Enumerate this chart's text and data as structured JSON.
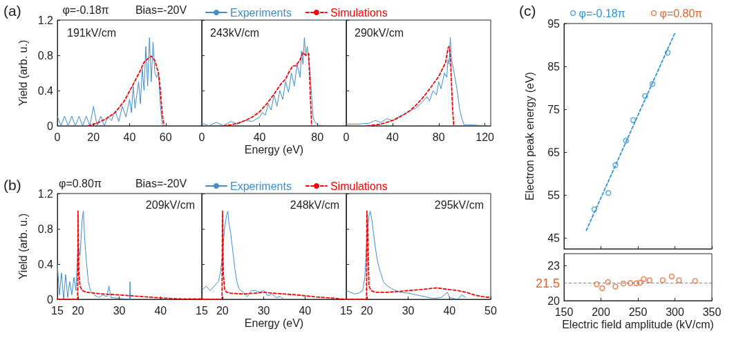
{
  "chart_data": [
    {
      "type": "line",
      "title": "(a)",
      "ylabel": "Yield (arb. u.)",
      "annotations": [
        "φ=-0.18π",
        "Bias=-20V",
        "191kV/cm"
      ],
      "xlim": [
        0,
        80
      ],
      "xticks": [
        0,
        20,
        40,
        60
      ],
      "ylim": [
        0,
        1.2
      ],
      "yticks": [
        0,
        0.4,
        0.8,
        1.2
      ],
      "legend": "top",
      "marker": "none",
      "series": [
        {
          "name": "Experiments",
          "color": "#3b8ed0",
          "line_style": "solid",
          "x": [
            0,
            2,
            4,
            6,
            8,
            10,
            12,
            14,
            16,
            18,
            20,
            22,
            24,
            26,
            28,
            30,
            32,
            34,
            36,
            38,
            40,
            41,
            42,
            43,
            44,
            45,
            46,
            47,
            48,
            49,
            50,
            51,
            52,
            53,
            54,
            55,
            56,
            57,
            58,
            59
          ],
          "values": [
            0.11,
            0,
            0.11,
            0,
            0.11,
            0,
            0.11,
            0,
            0.11,
            0,
            0.22,
            0,
            0.11,
            0,
            0.11,
            0.06,
            0.17,
            0.05,
            0.22,
            0.1,
            0.3,
            0.15,
            0.45,
            0.2,
            0.35,
            0.5,
            0.25,
            0.65,
            0.4,
            0.9,
            0.45,
            1.0,
            0.5,
            0.95,
            0.6,
            0.55,
            0.6,
            0.25,
            0.02,
            0
          ]
        },
        {
          "name": "Simulations",
          "color": "#ff0000",
          "line_style": "dashed",
          "x": [
            17,
            22,
            27,
            32,
            37,
            42,
            46,
            48,
            50,
            52,
            54,
            56,
            57,
            58,
            59
          ],
          "values": [
            0,
            0.03,
            0.08,
            0.15,
            0.28,
            0.47,
            0.63,
            0.72,
            0.76,
            0.79,
            0.74,
            0.6,
            0.42,
            0.15,
            0
          ]
        }
      ]
    },
    {
      "type": "line",
      "xlabel": "Energy (eV)",
      "annotations": [
        "243kV/cm"
      ],
      "xlim": [
        0,
        100
      ],
      "xticks": [
        0,
        40,
        80
      ],
      "ylim": [
        0,
        1.2
      ],
      "yticks": [
        0,
        0.4,
        0.8,
        1.2
      ],
      "tick_labels": "x",
      "marker": "none",
      "series": [
        {
          "color": "#3b8ed0",
          "line_style": "solid",
          "x": [
            0,
            5,
            10,
            15,
            20,
            25,
            30,
            35,
            40,
            42,
            44,
            46,
            48,
            50,
            52,
            54,
            56,
            58,
            60,
            62,
            64,
            66,
            68,
            69,
            70,
            71,
            72,
            73,
            74,
            75,
            76,
            77,
            78,
            80,
            85
          ],
          "values": [
            0.03,
            0,
            0.04,
            0,
            0.05,
            0.02,
            0.06,
            0.05,
            0.1,
            0.15,
            0.12,
            0.25,
            0.18,
            0.35,
            0.22,
            0.4,
            0.3,
            0.5,
            0.38,
            0.6,
            0.45,
            0.7,
            0.55,
            0.85,
            0.7,
            1.0,
            0.8,
            0.9,
            0.75,
            0.6,
            0.35,
            0.1,
            0.05,
            0.01,
            0
          ]
        },
        {
          "color": "#ff0000",
          "line_style": "dashed",
          "x": [
            15,
            20,
            25,
            30,
            35,
            40,
            45,
            50,
            55,
            58,
            60,
            63,
            65,
            68,
            70,
            72,
            74,
            75,
            76
          ],
          "values": [
            0,
            0.01,
            0.03,
            0.06,
            0.1,
            0.16,
            0.25,
            0.36,
            0.48,
            0.53,
            0.6,
            0.68,
            0.68,
            0.75,
            0.83,
            0.8,
            0.82,
            0.4,
            0
          ]
        }
      ]
    },
    {
      "type": "line",
      "annotations": [
        "290kV/cm"
      ],
      "xlim": [
        0,
        125
      ],
      "xticks": [
        0,
        40,
        80,
        120
      ],
      "ylim": [
        0,
        1.2
      ],
      "yticks": [
        0,
        0.4,
        0.8,
        1.2
      ],
      "tick_labels": "x",
      "marker": "none",
      "series": [
        {
          "color": "#3b8ed0",
          "line_style": "solid",
          "x": [
            0,
            10,
            20,
            25,
            30,
            35,
            40,
            45,
            50,
            55,
            60,
            65,
            70,
            72,
            75,
            78,
            80,
            82,
            85,
            87,
            88,
            89,
            90,
            91,
            92,
            94,
            96,
            98,
            100,
            102,
            110,
            120
          ],
          "values": [
            0.02,
            0.02,
            0.03,
            0.06,
            0.04,
            0.08,
            0.06,
            0.1,
            0.13,
            0.17,
            0.2,
            0.26,
            0.33,
            0.28,
            0.4,
            0.35,
            0.5,
            0.42,
            0.6,
            0.55,
            0.75,
            0.7,
            1.0,
            0.75,
            0.7,
            0.55,
            0.4,
            0.2,
            0.08,
            0.01,
            0.01,
            0
          ]
        },
        {
          "color": "#ff0000",
          "line_style": "dashed",
          "x": [
            18,
            25,
            30,
            35,
            40,
            45,
            50,
            55,
            60,
            65,
            70,
            75,
            80,
            83,
            86,
            88,
            89,
            90,
            91,
            92,
            93
          ],
          "values": [
            0,
            0.01,
            0.02,
            0.04,
            0.06,
            0.09,
            0.13,
            0.17,
            0.23,
            0.3,
            0.38,
            0.47,
            0.56,
            0.64,
            0.72,
            0.88,
            0.9,
            0.8,
            0.5,
            0.2,
            0
          ]
        }
      ]
    },
    {
      "type": "line",
      "title": "(b)",
      "ylabel": "Yield (arb. u.)",
      "annotations": [
        "φ=0.80π",
        "Bias=-20V",
        "209kV/cm"
      ],
      "xlim": [
        15,
        50
      ],
      "xticks": [
        15,
        20,
        30,
        40
      ],
      "ylim": [
        0,
        1.2
      ],
      "yticks": [
        0,
        0.4,
        0.8,
        1.2
      ],
      "legend": "top",
      "marker": "none",
      "series": [
        {
          "name": "Experiments",
          "color": "#3b8ed0",
          "line_style": "solid",
          "x": [
            15,
            15.5,
            16,
            16.5,
            17,
            17.5,
            18,
            18.5,
            19,
            19.5,
            20,
            20.5,
            21,
            21.3,
            21.6,
            22,
            22.5,
            23,
            24,
            25,
            26,
            27,
            27.5,
            28,
            30,
            32.5,
            32.6,
            32.7
          ],
          "values": [
            0.4,
            0.05,
            0.3,
            0,
            0.28,
            0.02,
            0.2,
            0.05,
            0.25,
            0.1,
            0.6,
            0.5,
            0.9,
            1.0,
            0.7,
            0.45,
            0.2,
            0.1,
            0.05,
            0.02,
            0.05,
            0.03,
            0.15,
            0.02,
            0.01,
            0,
            0.2,
            0
          ]
        },
        {
          "name": "Simulations",
          "color": "#ff0000",
          "line_style": "dashed",
          "x": [
            15,
            19.9,
            20,
            20.2,
            20.5,
            21,
            22,
            24,
            26,
            28,
            30,
            33,
            36,
            40,
            45,
            50
          ],
          "values": [
            0,
            0,
            1.0,
            0.3,
            0.15,
            0.1,
            0.08,
            0.07,
            0.06,
            0.055,
            0.05,
            0.04,
            0.03,
            0.015,
            0.005,
            0.005
          ]
        }
      ]
    },
    {
      "type": "line",
      "xlabel": "Energy (eV)",
      "annotations": [
        "248kV/cm"
      ],
      "xlim": [
        15,
        50
      ],
      "xticks": [
        15,
        20,
        30,
        40
      ],
      "ylim": [
        0,
        1.2
      ],
      "yticks": [
        0,
        0.4,
        0.8,
        1.2
      ],
      "tick_labels": "x",
      "marker": "none",
      "series": [
        {
          "color": "#3b8ed0",
          "line_style": "solid",
          "x": [
            15,
            16,
            17,
            18,
            19,
            19.5,
            20,
            20.5,
            21,
            21.3,
            21.6,
            22,
            22.5,
            23,
            23.5,
            24,
            25,
            26,
            27,
            28,
            29,
            30,
            31,
            32,
            33,
            34,
            35
          ],
          "values": [
            0.1,
            0.15,
            0.1,
            0.15,
            0.2,
            0.3,
            0.5,
            0.8,
            0.95,
            1.0,
            0.85,
            0.75,
            0.55,
            0.35,
            0.2,
            0.12,
            0.08,
            0.03,
            0.1,
            0.1,
            0.08,
            0.1,
            0.04,
            0.06,
            0.02,
            0.03,
            0
          ]
        },
        {
          "color": "#ff0000",
          "line_style": "dashed",
          "x": [
            15,
            19.9,
            20,
            20.2,
            20.5,
            21,
            22,
            25,
            28,
            30,
            32,
            35,
            38,
            40,
            42,
            45,
            50
          ],
          "values": [
            0,
            0,
            1.0,
            0.3,
            0.12,
            0.08,
            0.07,
            0.06,
            0.07,
            0.08,
            0.07,
            0.06,
            0.05,
            0.04,
            0.03,
            0.02,
            0
          ]
        }
      ]
    },
    {
      "type": "line",
      "annotations": [
        "295kV/cm"
      ],
      "xlim": [
        15,
        50
      ],
      "xticks": [
        15,
        20,
        30,
        40,
        50
      ],
      "ylim": [
        0,
        1.2
      ],
      "yticks": [
        0,
        0.4,
        0.8,
        1.2
      ],
      "tick_labels": "x",
      "marker": "none",
      "series": [
        {
          "color": "#3b8ed0",
          "line_style": "solid",
          "x": [
            15,
            16,
            17,
            18,
            19,
            19.5,
            20,
            20.5,
            20.8,
            21.2,
            21.6,
            22,
            22.5,
            23,
            24,
            25,
            26,
            27,
            28,
            30,
            32,
            34,
            35,
            36,
            38,
            39.5,
            40,
            42,
            43,
            44
          ],
          "values": [
            0.1,
            0.08,
            0.06,
            0.07,
            0.1,
            0.25,
            0.7,
            0.95,
            1.0,
            0.9,
            0.75,
            0.6,
            0.45,
            0.35,
            0.2,
            0.15,
            0.12,
            0.1,
            0.08,
            0.07,
            0.05,
            0.03,
            0.02,
            0.01,
            0.02,
            0.08,
            0.02,
            0,
            0.05,
            0.02
          ]
        },
        {
          "color": "#ff0000",
          "line_style": "dashed",
          "x": [
            15,
            19.9,
            20,
            20.2,
            20.5,
            21,
            22,
            25,
            28,
            30,
            33,
            35,
            37,
            40,
            42,
            44,
            46,
            48,
            50
          ],
          "values": [
            0,
            0,
            1.0,
            0.75,
            0.15,
            0.1,
            0.08,
            0.08,
            0.09,
            0.1,
            0.11,
            0.12,
            0.13,
            0.11,
            0.1,
            0.08,
            0.05,
            0.03,
            0.02
          ]
        }
      ]
    },
    {
      "type": "scatter",
      "title": "(c)",
      "ylabel": "Electron peak energy (eV)",
      "xlim": [
        150,
        350
      ],
      "xticks": [
        150,
        200,
        250,
        300,
        350
      ],
      "ylim": [
        42.5,
        95
      ],
      "yticks": [
        45,
        55,
        65,
        75,
        85,
        95
      ],
      "tick_labels": "y",
      "legend": "top",
      "marker": "circle",
      "series": [
        {
          "name": "φ=-0.18π",
          "color": "#2e95d8",
          "x": [
            191,
            210,
            219.5,
            233.8,
            243.5,
            259.7,
            269.6,
            290.2
          ],
          "values": [
            51.7,
            55.5,
            62.0,
            67.7,
            72.5,
            78.1,
            80.9,
            88.2
          ]
        },
        {
          "type": "line",
          "color": "#2e95d8",
          "line_style": "dashed",
          "marker": "none",
          "x": [
            180.2,
            300.5
          ],
          "values": [
            46.8,
            93.0
          ]
        }
      ]
    },
    {
      "type": "scatter",
      "xlabel": "Electric field amplitude (kV/cm)",
      "xlim": [
        150,
        350
      ],
      "xticks": [
        150,
        200,
        250,
        300,
        350
      ],
      "ylim": [
        20,
        24
      ],
      "yticks": [
        20,
        23
      ],
      "legend": "top",
      "marker": "circle",
      "ref_lines": [
        {
          "axis": "y",
          "value": 21.5,
          "label": "21.5",
          "color": "#e8632b",
          "line_style": "dashed"
        }
      ],
      "series": [
        {
          "name": "φ=0.80π",
          "color": "#e8632b",
          "x": [
            194.2,
            201.7,
            209.5,
            219.5,
            230.4,
            239.7,
            247.8,
            252.8,
            257.8,
            265.6,
            283.6,
            295.8,
            305.5,
            327.3
          ],
          "values": [
            21.4,
            21.06,
            21.58,
            21.2,
            21.46,
            21.5,
            21.48,
            21.54,
            21.84,
            21.74,
            21.74,
            22.06,
            21.74,
            21.68
          ]
        }
      ]
    }
  ]
}
